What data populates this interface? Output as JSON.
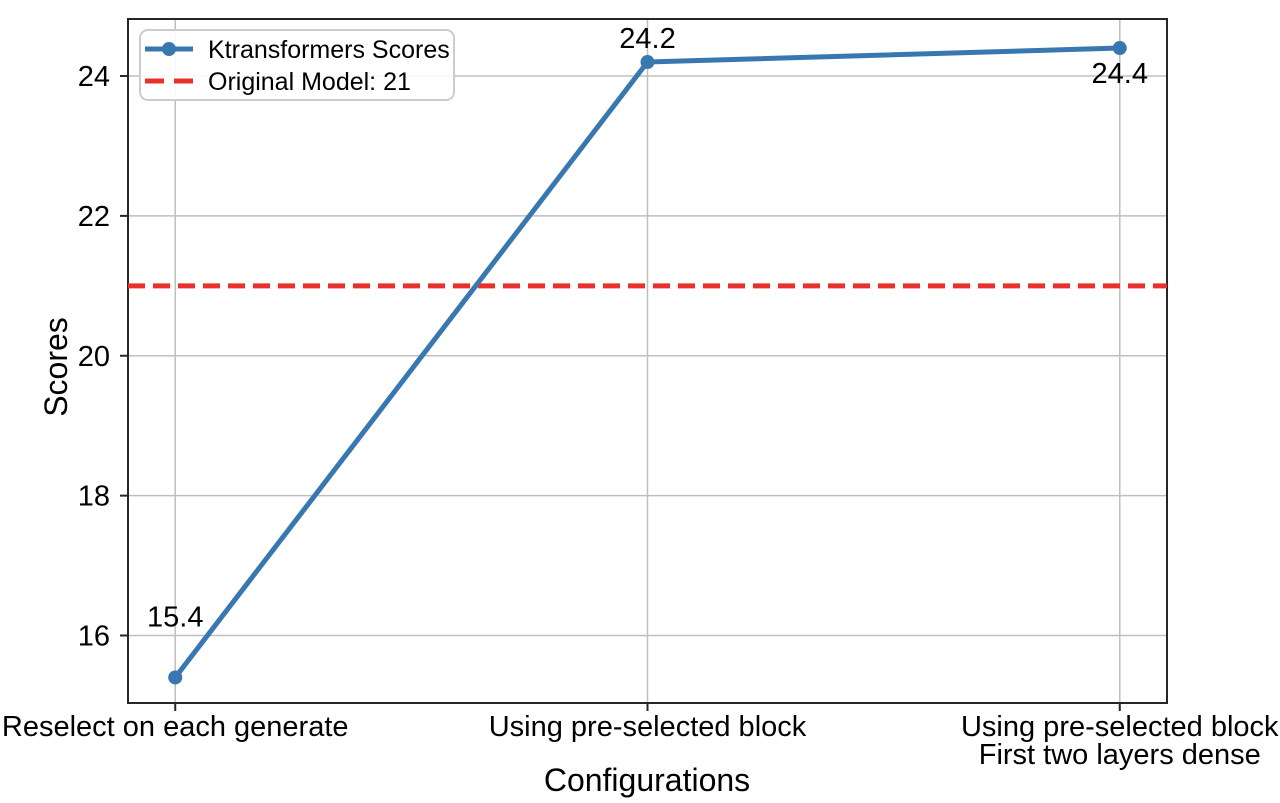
{
  "chart_data": {
    "type": "line",
    "title": "",
    "xlabel": "Configurations",
    "ylabel": "Scores",
    "categories": [
      "Reselect on each generate",
      "Using pre-selected block",
      "Using pre-selected block\nFirst two layers dense"
    ],
    "category_lines": [
      [
        "Reselect on each generate"
      ],
      [
        "Using pre-selected block"
      ],
      [
        "Using pre-selected block",
        "First two layers dense"
      ]
    ],
    "series": [
      {
        "name": "Ktransformers Scores",
        "values": [
          15.4,
          24.2,
          24.4
        ],
        "color": "#3877af"
      }
    ],
    "reference_line": {
      "label": "Original Model: 21",
      "value": 21,
      "color": "#e8312a",
      "style": "dashed"
    },
    "annotations": [
      "15.4",
      "24.2",
      "24.4"
    ],
    "yticks": [
      "16",
      "18",
      "20",
      "22",
      "24"
    ],
    "ytick_values": [
      16,
      18,
      20,
      22,
      24
    ],
    "ylim": [
      15.035,
      24.815
    ],
    "xlim": [
      -0.1,
      2.1
    ],
    "grid": true,
    "legend": {
      "position": "upper left",
      "items": [
        {
          "label": "Ktransformers Scores"
        },
        {
          "label": "Original Model: 21"
        }
      ]
    }
  }
}
